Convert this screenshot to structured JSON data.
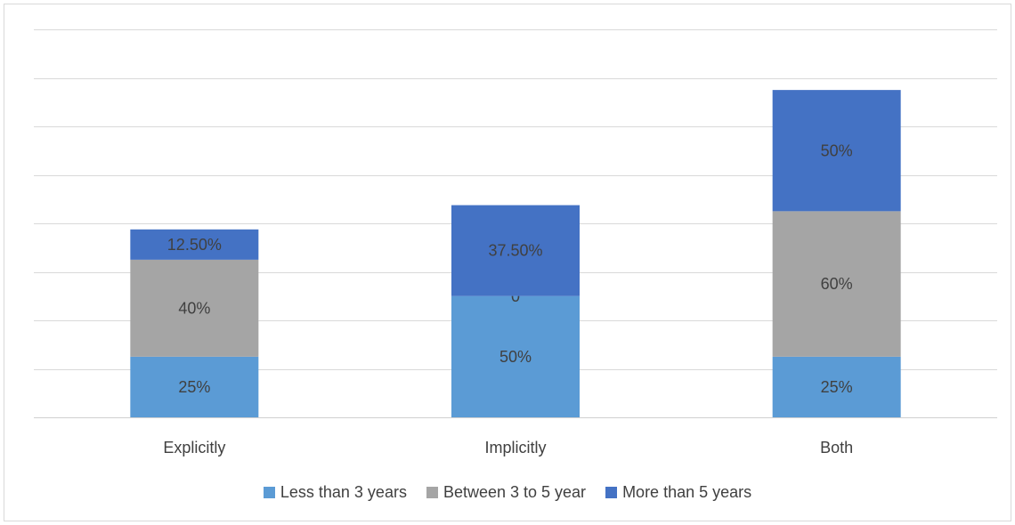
{
  "chart_data": {
    "type": "bar",
    "stacked": true,
    "categories": [
      "Explicitly",
      "Implicitly",
      "Both"
    ],
    "series": [
      {
        "name": "Less than 3 years",
        "color": "#5B9BD5",
        "values": [
          25,
          50,
          25
        ],
        "labels": [
          "25%",
          "50%",
          "25%"
        ]
      },
      {
        "name": "Between 3 to 5 year",
        "color": "#A5A5A5",
        "values": [
          40,
          0,
          60
        ],
        "labels": [
          "40%",
          "0",
          "60%"
        ]
      },
      {
        "name": "More than 5 years",
        "color": "#4472C4",
        "values": [
          12.5,
          37.5,
          50
        ],
        "labels": [
          "12.50%",
          "37.50%",
          "50%"
        ]
      }
    ],
    "ylim": [
      0,
      160
    ],
    "grid": true,
    "legend_position": "bottom",
    "title": "",
    "xlabel": "",
    "ylabel": ""
  }
}
